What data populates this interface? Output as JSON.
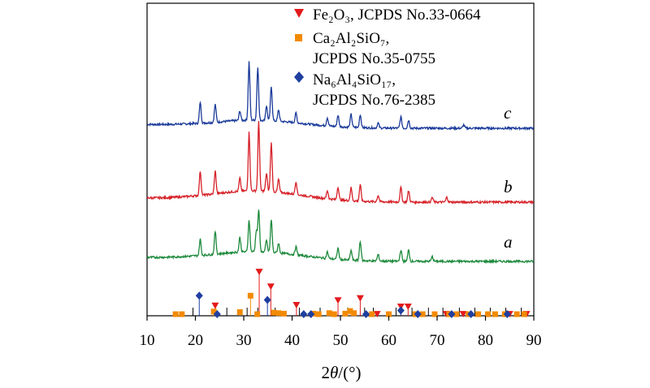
{
  "chart_data": {
    "type": "line",
    "xlabel_prefix": "2",
    "xlabel_theta": "θ",
    "xlabel_suffix": "/(°)",
    "xlim": [
      10,
      90
    ],
    "x_ticks": [
      10,
      20,
      30,
      40,
      50,
      60,
      70,
      80,
      90
    ],
    "legend": [
      {
        "label": "Fe₂O₃, JCPDS No.33-0664",
        "marker": "triangle-down",
        "color": "#e31a1c"
      },
      {
        "label": "Ca₂Al₂SiO₇,",
        "label2": "JCPDS No.35-0755",
        "marker": "square",
        "color": "#f28a00"
      },
      {
        "label": "Na₆Al₄SiO₁₇,",
        "label2": "JCPDS No.76-2385",
        "marker": "diamond",
        "color": "#1f3fa0"
      }
    ],
    "series": [
      {
        "name": "c",
        "color": "#1a3a9a",
        "peaks": [
          [
            21.0,
            26
          ],
          [
            24.1,
            22
          ],
          [
            29.2,
            12
          ],
          [
            31.1,
            72
          ],
          [
            32.9,
            66
          ],
          [
            34.7,
            18
          ],
          [
            35.7,
            42
          ],
          [
            37.2,
            14
          ],
          [
            40.8,
            12
          ],
          [
            47.3,
            10
          ],
          [
            49.5,
            14
          ],
          [
            52.2,
            16
          ],
          [
            54.1,
            16
          ],
          [
            57.8,
            6
          ],
          [
            62.5,
            14
          ],
          [
            64.1,
            10
          ],
          [
            75.5,
            4
          ]
        ]
      },
      {
        "name": "b",
        "color": "#d62128",
        "peaks": [
          [
            21.0,
            30
          ],
          [
            24.1,
            28
          ],
          [
            29.2,
            16
          ],
          [
            31.1,
            72
          ],
          [
            33.1,
            86
          ],
          [
            34.7,
            22
          ],
          [
            35.7,
            60
          ],
          [
            37.2,
            16
          ],
          [
            40.8,
            16
          ],
          [
            47.3,
            10
          ],
          [
            49.5,
            16
          ],
          [
            52.2,
            16
          ],
          [
            54.1,
            20
          ],
          [
            57.8,
            8
          ],
          [
            62.5,
            18
          ],
          [
            64.1,
            14
          ],
          [
            69.0,
            6
          ],
          [
            72.0,
            6
          ]
        ]
      },
      {
        "name": "a",
        "color": "#1e8a3c",
        "peaks": [
          [
            21.0,
            20
          ],
          [
            24.1,
            28
          ],
          [
            29.2,
            18
          ],
          [
            31.1,
            40
          ],
          [
            32.6,
            26
          ],
          [
            33.1,
            52
          ],
          [
            34.7,
            14
          ],
          [
            35.7,
            40
          ],
          [
            37.2,
            12
          ],
          [
            40.8,
            10
          ],
          [
            47.3,
            8
          ],
          [
            49.5,
            14
          ],
          [
            52.2,
            12
          ],
          [
            54.1,
            24
          ],
          [
            57.8,
            8
          ],
          [
            62.5,
            14
          ],
          [
            64.1,
            14
          ],
          [
            69.0,
            6
          ]
        ]
      }
    ],
    "reference_lines": {
      "Fe2O3": [
        [
          24.1,
          0.22
        ],
        [
          33.2,
          0.86
        ],
        [
          35.6,
          0.58
        ],
        [
          40.9,
          0.23
        ],
        [
          49.5,
          0.32
        ],
        [
          54.1,
          0.36
        ],
        [
          57.6,
          0.06
        ],
        [
          62.5,
          0.2
        ],
        [
          64.0,
          0.2
        ],
        [
          71.9,
          0.06
        ],
        [
          75.4,
          0.06
        ],
        [
          85.0,
          0.06
        ],
        [
          88.5,
          0.06
        ]
      ],
      "Ca2Al2SiO7": [
        [
          15.9,
          0.03
        ],
        [
          17.2,
          0.03
        ],
        [
          23.8,
          0.08
        ],
        [
          29.2,
          0.07
        ],
        [
          31.4,
          0.38
        ],
        [
          32.8,
          0.03
        ],
        [
          36.2,
          0.06
        ],
        [
          37.2,
          0.05
        ],
        [
          38.3,
          0.04
        ],
        [
          44.4,
          0.04
        ],
        [
          45.5,
          0.03
        ],
        [
          47.7,
          0.05
        ],
        [
          48.7,
          0.03
        ],
        [
          51.0,
          0.04
        ],
        [
          52.0,
          0.09
        ],
        [
          52.8,
          0.05
        ],
        [
          56.5,
          0.03
        ],
        [
          60.0,
          0.03
        ],
        [
          65.5,
          0.03
        ],
        [
          67.0,
          0.03
        ],
        [
          69.5,
          0.03
        ],
        [
          72.5,
          0.03
        ],
        [
          74.0,
          0.03
        ],
        [
          76.5,
          0.03
        ],
        [
          78.5,
          0.03
        ],
        [
          80.5,
          0.03
        ],
        [
          82.0,
          0.03
        ],
        [
          84.0,
          0.03
        ],
        [
          86.5,
          0.03
        ],
        [
          88.0,
          0.03
        ]
      ],
      "Na6Al4SiO17": [
        [
          20.8,
          0.38
        ],
        [
          24.5,
          0.03
        ],
        [
          34.9,
          0.3
        ],
        [
          42.4,
          0.03
        ],
        [
          43.9,
          0.03
        ],
        [
          55.3,
          0.03
        ],
        [
          62.5,
          0.1
        ],
        [
          66.0,
          0.03
        ],
        [
          73.0,
          0.03
        ],
        [
          77.0,
          0.03
        ],
        [
          84.5,
          0.03
        ]
      ]
    },
    "reference_black_sticks": [
      19.5,
      26.5,
      30.7,
      32.9,
      36.5,
      41.5,
      45.8,
      51.5,
      55.0,
      56.8,
      61.5,
      64.8,
      68.2,
      71.2,
      74.6,
      77.8,
      81.0,
      84.2,
      87.4
    ]
  }
}
